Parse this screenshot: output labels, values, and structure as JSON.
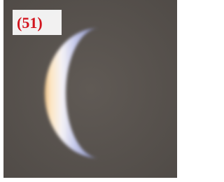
{
  "label": "(51)"
}
